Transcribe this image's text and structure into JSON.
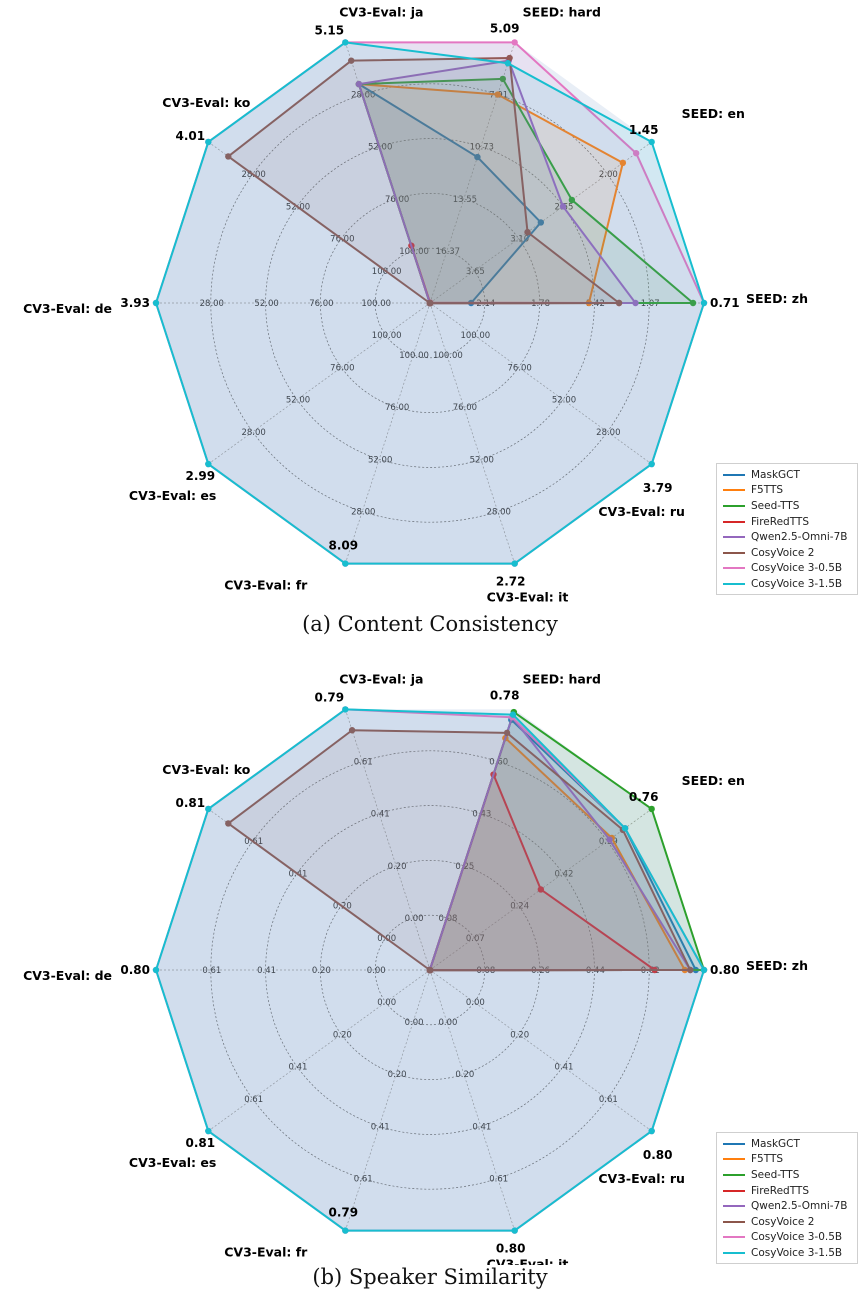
{
  "axes_labels": [
    "SEED: zh",
    "SEED: en",
    "SEED: hard",
    "CV3-Eval: ja",
    "CV3-Eval: ko",
    "CV3-Eval: de",
    "CV3-Eval: es",
    "CV3-Eval: fr",
    "CV3-Eval: it",
    "CV3-Eval: ru"
  ],
  "series_names": [
    "MaskGCT",
    "F5TTS",
    "Seed-TTS",
    "FireRedTTS",
    "Qwen2.5-Omni-7B",
    "CosyVoice 2",
    "CosyVoice 3-0.5B",
    "CosyVoice 3-1.5B"
  ],
  "colors": [
    "#1f77b4",
    "#ff7f0e",
    "#2ca02c",
    "#d62728",
    "#9467bd",
    "#8c564b",
    "#e377c2",
    "#17becf"
  ],
  "chart_data": [
    {
      "type": "radar",
      "caption": "(a) Content Consistency",
      "axis_tick_labels": [
        [
          "2.14",
          "1.78",
          "1.42",
          "1.07"
        ],
        [
          "3.65",
          "3.10",
          "2.55",
          "2.00"
        ],
        [
          "16.37",
          "13.55",
          "10.73",
          "7.91"
        ],
        [
          "100.00",
          "76.00",
          "52.00",
          "28.00"
        ],
        [
          "100.00",
          "76.00",
          "52.00",
          "28.00"
        ],
        [
          "100.00",
          "76.00",
          "52.00",
          "28.00"
        ],
        [
          "100.00",
          "76.00",
          "52.00",
          "28.00"
        ],
        [
          "100.00",
          "76.00",
          "52.00",
          "28.00"
        ],
        [
          "100.00",
          "76.00",
          "52.00",
          "28.00"
        ],
        [
          "100.00",
          "76.00",
          "52.00",
          "28.00"
        ]
      ],
      "axis_max_labels": [
        "0.71",
        "1.45",
        "5.09",
        "5.15",
        "4.01",
        "3.93",
        "2.99",
        "8.09",
        "2.72",
        "3.79"
      ],
      "series_radius_fraction": [
        [
          0.15,
          0.5,
          0.56,
          0.84,
          0.001,
          0.001,
          0.001,
          0.001,
          0.001,
          0.001
        ],
        [
          0.58,
          0.87,
          0.8,
          0.84,
          0.001,
          0.001,
          0.001,
          0.001,
          0.001,
          0.001
        ],
        [
          0.96,
          0.64,
          0.86,
          0.84,
          0.001,
          0.001,
          0.001,
          0.001,
          0.001,
          0.001
        ],
        [
          0.69,
          0.001,
          0.001,
          0.22,
          0.001,
          0.001,
          0.001,
          0.001,
          0.001,
          0.001
        ],
        [
          0.75,
          0.6,
          0.93,
          0.84,
          0.001,
          0.001,
          0.001,
          0.001,
          0.001,
          0.001
        ],
        [
          0.69,
          0.44,
          0.94,
          0.93,
          0.91,
          0.001,
          0.001,
          0.001,
          0.001,
          0.001
        ],
        [
          1.0,
          0.93,
          1.0,
          1.0,
          1.0,
          1.0,
          1.0,
          1.0,
          1.0,
          1.0
        ],
        [
          1.0,
          1.0,
          0.92,
          1.0,
          1.0,
          1.0,
          1.0,
          1.0,
          1.0,
          1.0
        ]
      ]
    },
    {
      "type": "radar",
      "caption": "(b) Speaker Similarity",
      "axis_tick_labels": [
        [
          "0.08",
          "0.26",
          "0.44",
          "0.62"
        ],
        [
          "0.07",
          "0.24",
          "0.42",
          "0.59"
        ],
        [
          "0.08",
          "0.25",
          "0.43",
          "0.60"
        ],
        [
          "0.00",
          "0.20",
          "0.41",
          "0.61"
        ],
        [
          "0.00",
          "0.20",
          "0.41",
          "0.61"
        ],
        [
          "0.00",
          "0.20",
          "0.41",
          "0.61"
        ],
        [
          "0.00",
          "0.20",
          "0.41",
          "0.61"
        ],
        [
          "0.00",
          "0.20",
          "0.41",
          "0.61"
        ],
        [
          "0.00",
          "0.20",
          "0.41",
          "0.61"
        ],
        [
          "0.00",
          "0.20",
          "0.41",
          "0.61"
        ]
      ],
      "axis_max_labels": [
        "0.80",
        "0.76",
        "0.78",
        "0.79",
        "0.81",
        "0.80",
        "0.81",
        "0.79",
        "0.80",
        "0.80"
      ],
      "series_radius_fraction": [
        [
          0.97,
          0.88,
          0.96,
          0.001,
          0.001,
          0.001,
          0.001,
          0.001,
          0.001,
          0.001
        ],
        [
          0.93,
          0.82,
          0.89,
          0.001,
          0.001,
          0.001,
          0.001,
          0.001,
          0.001,
          0.001
        ],
        [
          1.0,
          1.0,
          0.99,
          0.001,
          0.001,
          0.001,
          0.001,
          0.001,
          0.001,
          0.001
        ],
        [
          0.82,
          0.5,
          0.75,
          0.001,
          0.001,
          0.001,
          0.001,
          0.001,
          0.001,
          0.001
        ],
        [
          0.95,
          0.81,
          0.97,
          0.001,
          0.001,
          0.001,
          0.001,
          0.001,
          0.001,
          0.001
        ],
        [
          0.95,
          0.87,
          0.91,
          0.92,
          0.91,
          0.001,
          0.001,
          0.001,
          0.001,
          0.001
        ],
        [
          1.0,
          0.88,
          0.97,
          1.0,
          1.0,
          1.0,
          1.0,
          1.0,
          1.0,
          1.0
        ],
        [
          1.0,
          0.88,
          0.98,
          1.0,
          1.0,
          1.0,
          1.0,
          1.0,
          1.0,
          1.0
        ]
      ]
    }
  ]
}
